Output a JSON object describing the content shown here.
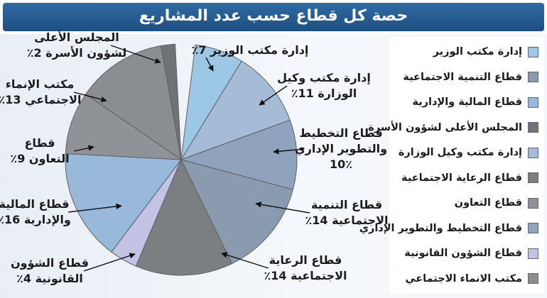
{
  "title": "حصة كل قطاع حسب عدد المشاريع",
  "chart_data": {
    "type": "pie",
    "title": "حصة كل قطاع حسب عدد المشاريع",
    "slices": [
      {
        "legend": "إدارة مكتب الوزير",
        "label_lines": [
          "إدارة مكتب الوزير 7٪"
        ],
        "value": 7,
        "color": "#9cc8e6"
      },
      {
        "legend": "إدارة مكتب وكيل الوزارة",
        "label_lines": [
          "إدارة مكتب وكيل",
          "الوزارة 11٪"
        ],
        "value": 11,
        "color": "#a6bcd6"
      },
      {
        "legend": "قطاع التخطيط والتطوير الإداري",
        "label_lines": [
          "قطاع التخطيط",
          "والتطوير الإداري",
          "10٪"
        ],
        "value": 10,
        "color": "#8fa3bd"
      },
      {
        "legend": "قطاع التنمية الاجتماعية",
        "label_lines": [
          "قطاع التنمية",
          "الاجتماعية 14٪"
        ],
        "value": 14,
        "color": "#8a9bb0"
      },
      {
        "legend": "قطاع الرعاية الاجتماعية",
        "label_lines": [
          "قطاع الرعاية",
          "الاجتماعية 14٪"
        ],
        "value": 14,
        "color": "#7c7f82"
      },
      {
        "legend": "قطاع الشؤون القانونية",
        "label_lines": [
          "قطاع الشؤون",
          "القانونية 4٪"
        ],
        "value": 4,
        "color": "#c3c3e6"
      },
      {
        "legend": "قطاع المالية والإدارية",
        "label_lines": [
          "قطاع المالية",
          "والإدارية 16٪"
        ],
        "value": 16,
        "color": "#98b9d9"
      },
      {
        "legend": "قطاع التعاون",
        "label_lines": [
          "قطاع",
          "التعاون 9٪"
        ],
        "value": 9,
        "color": "#8f9296"
      },
      {
        "legend": "مكتب الانماء الاجتماعي",
        "label_lines": [
          "مكتب الإنماء",
          "الاجتماعي 13٪"
        ],
        "value": 13,
        "color": "#8b8e91"
      },
      {
        "legend": "المجلس الأعلى لشؤون الأسرة",
        "label_lines": [
          "المجلس الأعلى",
          "لشؤون الأسرة 2٪"
        ],
        "value": 2,
        "color": "#6f7276"
      }
    ],
    "legend_order": [
      "إدارة مكتب الوزير",
      "قطاع التنمية الاجتماعية",
      "قطاع المالية والإدارية",
      "المجلس الأعلى لشؤون الأسرة",
      "إدارة مكتب وكيل الوزارة",
      "قطاع الرعاية الاجتماعية",
      "قطاع التعاون",
      "قطاع التخطيط والتطوير الإداري",
      "قطاع الشؤون القانونية",
      "مكتب الانماء الاجتماعي"
    ],
    "legend_position": "right"
  }
}
